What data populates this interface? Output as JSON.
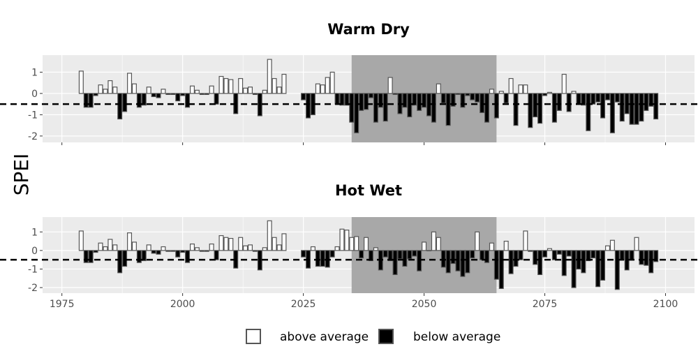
{
  "chart_data": {
    "type": "bar",
    "ylabel": "SPEI",
    "xlim": [
      1971,
      2106
    ],
    "x_ticks": [
      1975,
      2000,
      2025,
      2050,
      2075,
      2100
    ],
    "y_ticks": [
      1,
      0,
      -1,
      -2
    ],
    "ylim": [
      -2.3,
      1.8
    ],
    "threshold": -0.5,
    "highlight_range": [
      2035,
      2065
    ],
    "colors": {
      "above": "#ffffff",
      "below": "#000000",
      "bar_outline": "#555555",
      "panel": "#ebebeb",
      "highlight": "#a8a8a8",
      "grid": "#ffffff"
    },
    "legend": {
      "above": "above average",
      "below": "below average"
    },
    "panels": [
      {
        "title": "Warm Dry",
        "start_year": 1979,
        "values": [
          1.05,
          -0.65,
          -0.65,
          -0.1,
          0.4,
          0.2,
          0.6,
          0.3,
          -1.2,
          -0.85,
          0.95,
          0.45,
          -0.65,
          -0.55,
          0.3,
          -0.15,
          -0.2,
          0.2,
          -0.05,
          -0.05,
          -0.35,
          -0.1,
          -0.65,
          0.35,
          0.15,
          -0.05,
          -0.05,
          0.35,
          -0.5,
          0.8,
          0.7,
          0.65,
          -0.95,
          0.7,
          0.25,
          0.3,
          -0.05,
          -1.05,
          0.15,
          1.6,
          0.7,
          0.3,
          0.9,
          null,
          null,
          null,
          -0.3,
          -1.15,
          -1.0,
          0.45,
          0.4,
          0.75,
          1.0,
          -0.5,
          -0.55,
          -0.55,
          -1.35,
          -1.85,
          -0.8,
          -0.75,
          -0.2,
          -1.35,
          -0.65,
          -1.3,
          0.75,
          -0.05,
          -0.95,
          -0.65,
          -1.1,
          -0.55,
          -0.8,
          -0.65,
          -1.05,
          -1.35,
          0.45,
          -0.45,
          -1.5,
          -0.6,
          -0.05,
          -0.65,
          -0.1,
          -0.3,
          -0.4,
          -0.9,
          -1.35,
          0.2,
          -1.15,
          0.1,
          -0.45,
          0.7,
          -1.5,
          0.4,
          0.4,
          -1.6,
          -1.1,
          -1.4,
          -0.1,
          0.05,
          -1.35,
          -0.8,
          0.9,
          -0.85,
          0.1,
          -0.5,
          -0.55,
          -1.75,
          -0.5,
          -0.4,
          -1.15,
          -0.3,
          -1.85,
          -0.4,
          -1.3,
          -0.95,
          -1.45,
          -1.45,
          -1.3,
          -0.8,
          -0.6,
          -1.2
        ]
      },
      {
        "title": "Hot Wet",
        "start_year": 1979,
        "values": [
          1.05,
          -0.65,
          -0.65,
          -0.1,
          0.4,
          0.2,
          0.6,
          0.3,
          -1.2,
          -0.85,
          0.95,
          0.45,
          -0.65,
          -0.55,
          0.3,
          -0.15,
          -0.2,
          0.2,
          -0.05,
          -0.05,
          -0.35,
          -0.1,
          -0.65,
          0.35,
          0.15,
          -0.05,
          -0.05,
          0.35,
          -0.5,
          0.8,
          0.7,
          0.65,
          -0.95,
          0.7,
          0.25,
          0.3,
          -0.05,
          -1.05,
          0.15,
          1.6,
          0.7,
          0.3,
          0.9,
          null,
          null,
          null,
          -0.35,
          -0.95,
          0.2,
          -0.85,
          -0.85,
          -0.9,
          -0.35,
          0.2,
          1.15,
          1.1,
          0.7,
          0.75,
          -0.4,
          0.7,
          -0.55,
          0.15,
          -1.05,
          -0.35,
          -0.55,
          -1.3,
          -0.45,
          -0.85,
          -0.45,
          -0.3,
          -1.1,
          0.45,
          0.0,
          1.0,
          0.7,
          -0.9,
          -1.2,
          -0.7,
          -1.1,
          -1.4,
          -1.2,
          -0.4,
          1.0,
          -0.5,
          -0.65,
          0.4,
          -1.55,
          -2.05,
          0.5,
          -1.25,
          -0.85,
          -0.5,
          1.05,
          -0.05,
          -0.75,
          -1.3,
          -0.35,
          0.1,
          -0.5,
          -0.2,
          -1.35,
          -0.3,
          -2.0,
          -1.0,
          -1.2,
          -0.55,
          -0.4,
          -1.95,
          -1.6,
          0.25,
          0.55,
          -2.1,
          -0.5,
          -1.05,
          -0.5,
          0.7,
          -0.75,
          -0.8,
          -1.2,
          -0.6
        ]
      }
    ]
  }
}
